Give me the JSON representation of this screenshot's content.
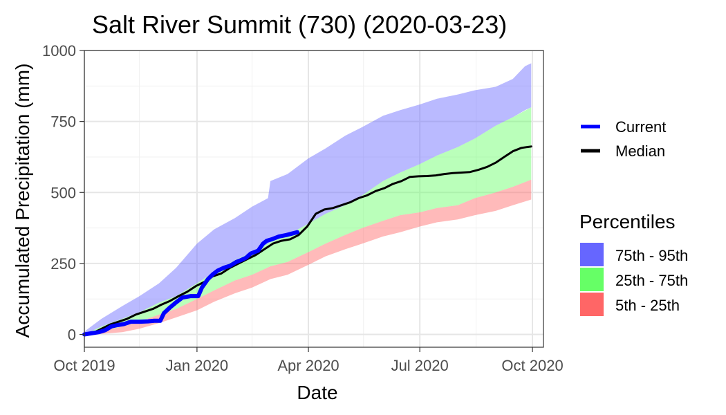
{
  "chart_data": {
    "type": "area",
    "title": "Salt River Summit (730) (2020-03-23)",
    "xlabel": "Date",
    "ylabel": "Accumulated Precipitation (mm)",
    "xlim": [
      "2019-10-01",
      "2020-10-10"
    ],
    "ylim": [
      -45,
      1000
    ],
    "x_ticks": [
      {
        "date": "2019-10-01",
        "label": "Oct 2019"
      },
      {
        "date": "2020-01-01",
        "label": "Jan 2020"
      },
      {
        "date": "2020-04-01",
        "label": "Apr 2020"
      },
      {
        "date": "2020-07-01",
        "label": "Jul 2020"
      },
      {
        "date": "2020-10-01",
        "label": "Oct 2020"
      }
    ],
    "x_minor_ticks": [
      "2019-11-15",
      "2020-02-15",
      "2020-05-16",
      "2020-08-16"
    ],
    "y_ticks": [
      0,
      250,
      500,
      750,
      1000
    ],
    "y_minor_ticks": [
      125,
      375,
      625,
      875
    ],
    "grid": true,
    "legend_position": "right",
    "series_lines": [
      {
        "name": "Current",
        "color": "#0000ff",
        "points": [
          [
            "2019-10-01",
            0
          ],
          [
            "2019-10-08",
            5
          ],
          [
            "2019-10-13",
            8
          ],
          [
            "2019-10-18",
            15
          ],
          [
            "2019-10-23",
            28
          ],
          [
            "2019-10-28",
            33
          ],
          [
            "2019-11-02",
            36
          ],
          [
            "2019-11-08",
            45
          ],
          [
            "2019-11-15",
            45
          ],
          [
            "2019-11-22",
            46
          ],
          [
            "2019-11-27",
            48
          ],
          [
            "2019-12-02",
            48
          ],
          [
            "2019-12-05",
            75
          ],
          [
            "2019-12-10",
            95
          ],
          [
            "2019-12-15",
            113
          ],
          [
            "2019-12-20",
            130
          ],
          [
            "2019-12-27",
            135
          ],
          [
            "2020-01-02",
            135
          ],
          [
            "2020-01-05",
            165
          ],
          [
            "2020-01-10",
            195
          ],
          [
            "2020-01-14",
            212
          ],
          [
            "2020-01-18",
            225
          ],
          [
            "2020-01-23",
            235
          ],
          [
            "2020-01-28",
            242
          ],
          [
            "2020-02-02",
            255
          ],
          [
            "2020-02-06",
            262
          ],
          [
            "2020-02-10",
            270
          ],
          [
            "2020-02-14",
            285
          ],
          [
            "2020-02-20",
            295
          ],
          [
            "2020-02-24",
            320
          ],
          [
            "2020-02-27",
            330
          ],
          [
            "2020-03-02",
            335
          ],
          [
            "2020-03-08",
            345
          ],
          [
            "2020-03-14",
            350
          ],
          [
            "2020-03-23",
            360
          ]
        ]
      },
      {
        "name": "Median",
        "color": "#000000",
        "points": [
          [
            "2019-10-01",
            0
          ],
          [
            "2019-10-08",
            5
          ],
          [
            "2019-10-15",
            20
          ],
          [
            "2019-10-22",
            35
          ],
          [
            "2019-10-29",
            45
          ],
          [
            "2019-11-05",
            55
          ],
          [
            "2019-11-12",
            70
          ],
          [
            "2019-11-19",
            80
          ],
          [
            "2019-11-26",
            90
          ],
          [
            "2019-12-03",
            105
          ],
          [
            "2019-12-10",
            118
          ],
          [
            "2019-12-17",
            135
          ],
          [
            "2019-12-24",
            150
          ],
          [
            "2019-12-31",
            170
          ],
          [
            "2020-01-07",
            185
          ],
          [
            "2020-01-14",
            205
          ],
          [
            "2020-01-21",
            215
          ],
          [
            "2020-01-28",
            235
          ],
          [
            "2020-02-04",
            250
          ],
          [
            "2020-02-11",
            265
          ],
          [
            "2020-02-18",
            280
          ],
          [
            "2020-02-25",
            300
          ],
          [
            "2020-03-03",
            320
          ],
          [
            "2020-03-10",
            330
          ],
          [
            "2020-03-17",
            335
          ],
          [
            "2020-03-24",
            350
          ],
          [
            "2020-03-31",
            380
          ],
          [
            "2020-04-07",
            425
          ],
          [
            "2020-04-14",
            440
          ],
          [
            "2020-04-21",
            445
          ],
          [
            "2020-04-28",
            455
          ],
          [
            "2020-05-05",
            465
          ],
          [
            "2020-05-12",
            480
          ],
          [
            "2020-05-19",
            490
          ],
          [
            "2020-05-26",
            505
          ],
          [
            "2020-06-02",
            515
          ],
          [
            "2020-06-09",
            530
          ],
          [
            "2020-06-16",
            540
          ],
          [
            "2020-06-23",
            555
          ],
          [
            "2020-06-30",
            557
          ],
          [
            "2020-07-07",
            558
          ],
          [
            "2020-07-14",
            560
          ],
          [
            "2020-07-21",
            565
          ],
          [
            "2020-07-28",
            568
          ],
          [
            "2020-08-04",
            570
          ],
          [
            "2020-08-11",
            572
          ],
          [
            "2020-08-18",
            580
          ],
          [
            "2020-08-25",
            590
          ],
          [
            "2020-09-01",
            605
          ],
          [
            "2020-09-08",
            625
          ],
          [
            "2020-09-15",
            645
          ],
          [
            "2020-09-22",
            657
          ],
          [
            "2020-09-30",
            662
          ]
        ]
      }
    ],
    "bands": [
      {
        "name": "75th - 95th",
        "color": "#6666ff",
        "opacity": 0.45,
        "points": [
          [
            "2019-10-01",
            0,
            10
          ],
          [
            "2019-10-15",
            28,
            55
          ],
          [
            "2019-11-01",
            55,
            100
          ],
          [
            "2019-11-15",
            78,
            135
          ],
          [
            "2019-12-01",
            112,
            180
          ],
          [
            "2019-12-15",
            135,
            235
          ],
          [
            "2020-01-01",
            180,
            320
          ],
          [
            "2020-01-15",
            220,
            370
          ],
          [
            "2020-02-01",
            262,
            410
          ],
          [
            "2020-02-15",
            290,
            450
          ],
          [
            "2020-02-28",
            320,
            480
          ],
          [
            "2020-03-01",
            325,
            540
          ],
          [
            "2020-03-15",
            350,
            565
          ],
          [
            "2020-04-01",
            390,
            620
          ],
          [
            "2020-04-15",
            425,
            655
          ],
          [
            "2020-05-01",
            455,
            700
          ],
          [
            "2020-05-15",
            490,
            730
          ],
          [
            "2020-06-01",
            540,
            770
          ],
          [
            "2020-06-15",
            570,
            790
          ],
          [
            "2020-07-01",
            600,
            810
          ],
          [
            "2020-07-15",
            630,
            830
          ],
          [
            "2020-08-01",
            660,
            845
          ],
          [
            "2020-08-15",
            690,
            860
          ],
          [
            "2020-09-01",
            735,
            872
          ],
          [
            "2020-09-15",
            765,
            900
          ],
          [
            "2020-09-25",
            790,
            945
          ],
          [
            "2020-09-30",
            800,
            955
          ]
        ]
      },
      {
        "name": "25th - 75th",
        "color": "#66ff66",
        "opacity": 0.45,
        "points": [
          [
            "2019-10-01",
            0,
            0
          ],
          [
            "2019-10-15",
            12,
            28
          ],
          [
            "2019-11-01",
            28,
            55
          ],
          [
            "2019-11-15",
            45,
            78
          ],
          [
            "2019-12-01",
            70,
            112
          ],
          [
            "2019-12-15",
            90,
            135
          ],
          [
            "2020-01-01",
            125,
            180
          ],
          [
            "2020-01-15",
            155,
            220
          ],
          [
            "2020-02-01",
            190,
            262
          ],
          [
            "2020-02-15",
            210,
            290
          ],
          [
            "2020-03-01",
            240,
            325
          ],
          [
            "2020-03-15",
            255,
            350
          ],
          [
            "2020-04-01",
            290,
            390
          ],
          [
            "2020-04-15",
            320,
            425
          ],
          [
            "2020-05-01",
            350,
            455
          ],
          [
            "2020-05-15",
            375,
            490
          ],
          [
            "2020-06-01",
            400,
            540
          ],
          [
            "2020-06-15",
            420,
            570
          ],
          [
            "2020-07-01",
            430,
            600
          ],
          [
            "2020-07-15",
            445,
            630
          ],
          [
            "2020-08-01",
            455,
            660
          ],
          [
            "2020-08-15",
            480,
            690
          ],
          [
            "2020-09-01",
            500,
            735
          ],
          [
            "2020-09-15",
            520,
            765
          ],
          [
            "2020-09-30",
            545,
            800
          ]
        ]
      },
      {
        "name": "5th - 25th",
        "color": "#ff6666",
        "opacity": 0.45,
        "points": [
          [
            "2019-10-01",
            0,
            0
          ],
          [
            "2019-10-15",
            2,
            12
          ],
          [
            "2019-11-01",
            8,
            28
          ],
          [
            "2019-11-15",
            20,
            45
          ],
          [
            "2019-12-01",
            40,
            70
          ],
          [
            "2019-12-15",
            60,
            90
          ],
          [
            "2020-01-01",
            85,
            125
          ],
          [
            "2020-01-15",
            115,
            155
          ],
          [
            "2020-02-01",
            145,
            190
          ],
          [
            "2020-02-15",
            165,
            210
          ],
          [
            "2020-03-01",
            195,
            240
          ],
          [
            "2020-03-15",
            210,
            255
          ],
          [
            "2020-04-01",
            245,
            290
          ],
          [
            "2020-04-15",
            275,
            320
          ],
          [
            "2020-05-01",
            300,
            350
          ],
          [
            "2020-05-15",
            320,
            375
          ],
          [
            "2020-06-01",
            345,
            400
          ],
          [
            "2020-06-15",
            360,
            420
          ],
          [
            "2020-07-01",
            380,
            430
          ],
          [
            "2020-07-15",
            395,
            445
          ],
          [
            "2020-08-01",
            405,
            455
          ],
          [
            "2020-08-15",
            420,
            480
          ],
          [
            "2020-09-01",
            435,
            500
          ],
          [
            "2020-09-15",
            455,
            520
          ],
          [
            "2020-09-30",
            475,
            545
          ]
        ]
      }
    ],
    "legend": {
      "lines": [
        {
          "label": "Current",
          "color": "#0000ff"
        },
        {
          "label": "Median",
          "color": "#000000"
        }
      ],
      "percentiles_title": "Percentiles",
      "fills": [
        {
          "label": "75th - 95th",
          "color": "#6666ff"
        },
        {
          "label": "25th - 75th",
          "color": "#66ff66"
        },
        {
          "label": "5th - 25th",
          "color": "#ff6666"
        }
      ]
    }
  }
}
